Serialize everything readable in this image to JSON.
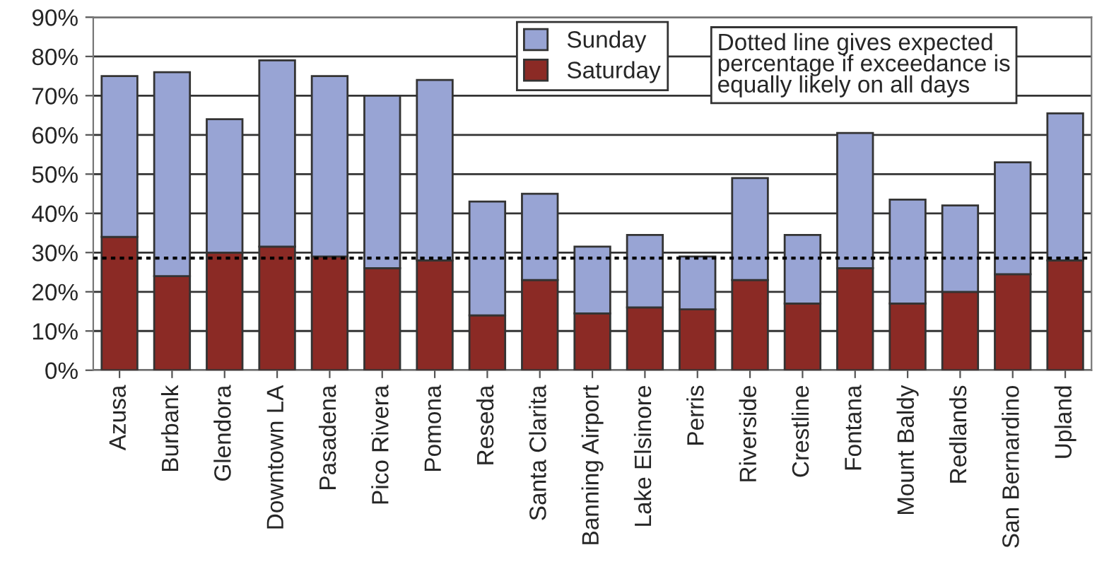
{
  "chart_data": {
    "type": "bar",
    "stacked": true,
    "categories": [
      "Azusa",
      "Burbank",
      "Glendora",
      "Downtown LA",
      "Pasadena",
      "Pico Rivera",
      "Pomona",
      "Reseda",
      "Santa Clarita",
      "Banning Airport",
      "Lake Elsinore",
      "Perris",
      "Riverside",
      "Crestline",
      "Fontana",
      "Mount Baldy",
      "Redlands",
      "San Bernardino",
      "Upland"
    ],
    "series": [
      {
        "name": "Saturday",
        "color": "#8b2a25",
        "values": [
          34,
          24,
          30,
          31.5,
          29,
          26,
          28,
          14,
          23,
          14.5,
          16,
          15.5,
          23,
          17,
          26,
          17,
          20,
          24.5,
          28
        ]
      },
      {
        "name": "Sunday",
        "color": "#98a4d4",
        "values": [
          41,
          52,
          34,
          47.5,
          46,
          44,
          46,
          29,
          22,
          17,
          18.5,
          13.5,
          26,
          17.5,
          34.5,
          26.5,
          22,
          28.5,
          37.5
        ]
      }
    ],
    "ylim": [
      0,
      90
    ],
    "yticks": [
      {
        "value": 0,
        "label": "0%"
      },
      {
        "value": 10,
        "label": "10%"
      },
      {
        "value": 20,
        "label": "20%"
      },
      {
        "value": 30,
        "label": "30%"
      },
      {
        "value": 40,
        "label": "40%"
      },
      {
        "value": 50,
        "label": "50%"
      },
      {
        "value": 60,
        "label": "60%"
      },
      {
        "value": 70,
        "label": "70%"
      },
      {
        "value": 80,
        "label": "80%"
      },
      {
        "value": 90,
        "label": "90%"
      }
    ],
    "grid": "y",
    "legend": "top",
    "ref_lines": [
      {
        "axis": "y",
        "value": 28.6,
        "color": "#000000",
        "line_style": "dotted"
      }
    ],
    "annotations": [
      "Dotted line gives expected\npercentage if exceedance is\nequally likely on all days"
    ]
  }
}
